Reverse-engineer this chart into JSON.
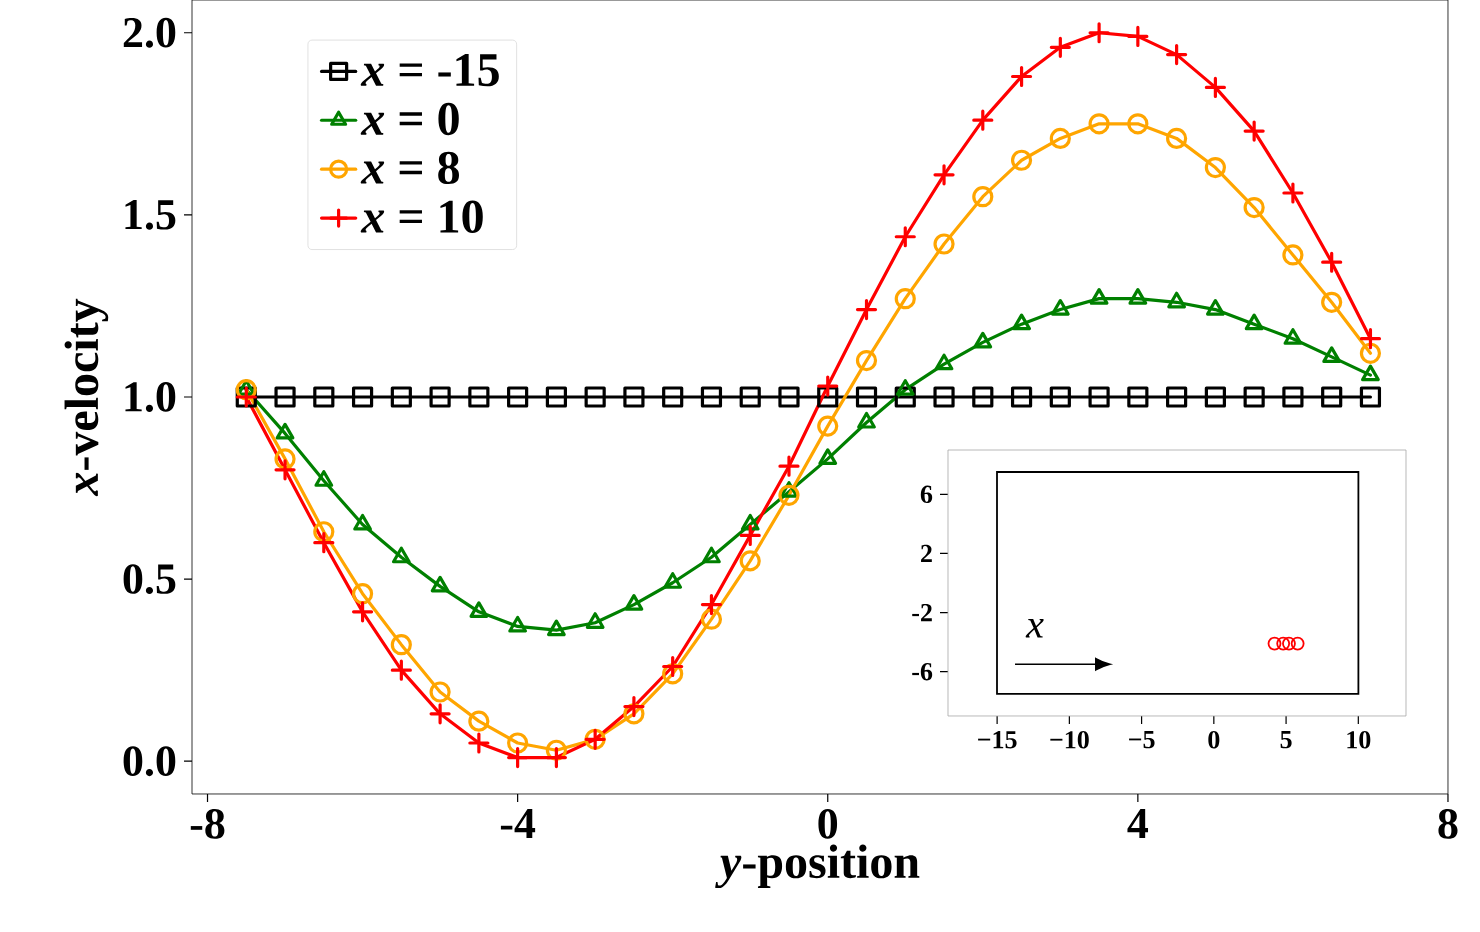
{
  "chart_data": [
    {
      "type": "line",
      "xlabel": "*y*-position",
      "ylabel": "*x*-velocity",
      "x": [
        -7.5,
        -7.0,
        -6.5,
        -6.0,
        -5.5,
        -5.0,
        -4.5,
        -4.0,
        -3.5,
        -3.0,
        -2.5,
        -2.0,
        -1.5,
        -1.0,
        -0.5,
        0.0,
        0.5,
        1.0,
        1.5,
        2.0,
        2.5,
        3.0,
        3.5,
        4.0,
        4.5,
        5.0,
        5.5,
        6.0,
        6.5,
        7.0
      ],
      "xlim": [
        -8.2,
        8.0
      ],
      "ylim": [
        -0.09,
        2.09
      ],
      "xticks": [
        -8,
        -4,
        0,
        4,
        8
      ],
      "yticks": [
        {
          "value": 0,
          "label": "0.0"
        },
        {
          "value": 0.5,
          "label": "0.5"
        },
        {
          "value": 1,
          "label": "1.0"
        },
        {
          "value": 1.5,
          "label": "1.5"
        },
        {
          "value": 2,
          "label": "2.0"
        }
      ],
      "legend": "top left",
      "line_style": "solid",
      "series": [
        {
          "name": "*x* = -15",
          "color": "#000000",
          "marker": "square",
          "values": [
            1.0,
            1.0,
            1.0,
            1.0,
            1.0,
            1.0,
            1.0,
            1.0,
            1.0,
            1.0,
            1.0,
            1.0,
            1.0,
            1.0,
            1.0,
            1.0,
            1.0,
            1.0,
            1.0,
            1.0,
            1.0,
            1.0,
            1.0,
            1.0,
            1.0,
            1.0,
            1.0,
            1.0,
            1.0,
            1.0
          ]
        },
        {
          "name": "*x* = 0",
          "color": "#008000",
          "marker": "triangle",
          "values": [
            1.02,
            0.9,
            0.77,
            0.65,
            0.56,
            0.48,
            0.41,
            0.37,
            0.36,
            0.38,
            0.43,
            0.49,
            0.56,
            0.65,
            0.74,
            0.83,
            0.93,
            1.02,
            1.09,
            1.15,
            1.2,
            1.24,
            1.27,
            1.27,
            1.26,
            1.24,
            1.2,
            1.16,
            1.11,
            1.06
          ]
        },
        {
          "name": "*x* = 8",
          "color": "#ffa500",
          "marker": "circle",
          "values": [
            1.02,
            0.83,
            0.63,
            0.46,
            0.32,
            0.19,
            0.11,
            0.05,
            0.03,
            0.06,
            0.13,
            0.24,
            0.39,
            0.55,
            0.73,
            0.92,
            1.1,
            1.27,
            1.42,
            1.55,
            1.65,
            1.71,
            1.75,
            1.75,
            1.71,
            1.63,
            1.52,
            1.39,
            1.26,
            1.12
          ]
        },
        {
          "name": "*x* = 10",
          "color": "#ff0000",
          "marker": "cross",
          "values": [
            1.0,
            0.8,
            0.6,
            0.41,
            0.25,
            0.13,
            0.05,
            0.01,
            0.01,
            0.06,
            0.15,
            0.26,
            0.43,
            0.62,
            0.81,
            1.03,
            1.24,
            1.44,
            1.61,
            1.76,
            1.88,
            1.96,
            2.0,
            1.99,
            1.94,
            1.85,
            1.73,
            1.56,
            1.37,
            1.16
          ]
        }
      ]
    },
    {
      "type": "scatter",
      "xlim": [
        -18.4,
        13.3
      ],
      "ylim": [
        -9,
        9
      ],
      "xticks": [
        {
          "value": -15,
          "label": "−15"
        },
        {
          "value": -10,
          "label": "−10"
        },
        {
          "value": -5,
          "label": "−5"
        },
        0,
        5,
        10
      ],
      "yticks": [
        -6,
        -2,
        2,
        6
      ],
      "annotations": [
        "x"
      ],
      "series": [
        {
          "color": "#ff0000",
          "marker": "circle",
          "x": [
            4.2,
            4.8,
            5.2,
            5.8
          ],
          "values": [
            -4.1,
            -4.1,
            -4.1,
            -4.1
          ]
        }
      ]
    }
  ]
}
